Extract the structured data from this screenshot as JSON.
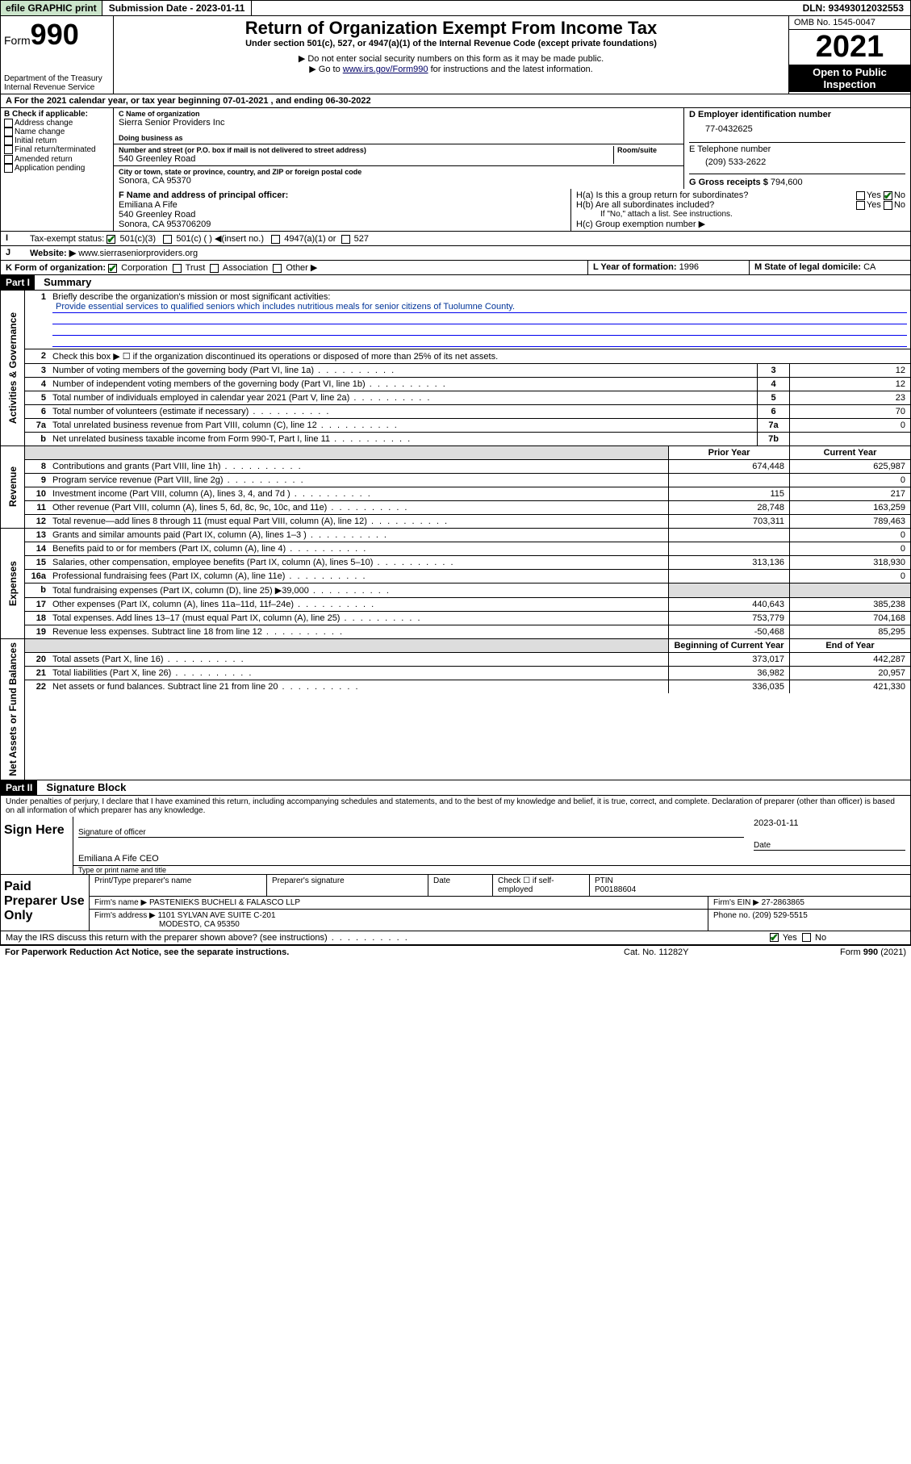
{
  "topbar": {
    "efile": "efile GRAPHIC print",
    "submission_label": "Submission Date - 2023-01-11",
    "dln": "DLN: 93493012032553"
  },
  "header": {
    "form_label": "Form",
    "form_number": "990",
    "dept": "Department of the Treasury",
    "irs": "Internal Revenue Service",
    "title": "Return of Organization Exempt From Income Tax",
    "subtitle": "Under section 501(c), 527, or 4947(a)(1) of the Internal Revenue Code (except private foundations)",
    "note1": "▶ Do not enter social security numbers on this form as it may be made public.",
    "note2_pre": "▶ Go to ",
    "note2_link": "www.irs.gov/Form990",
    "note2_post": " for instructions and the latest information.",
    "omb": "OMB No. 1545-0047",
    "year": "2021",
    "inspection": "Open to Public Inspection"
  },
  "period": {
    "text": "A For the 2021 calendar year, or tax year beginning 07-01-2021   , and ending 06-30-2022"
  },
  "sectionB": {
    "header": "B Check if applicable:",
    "items": [
      "Address change",
      "Name change",
      "Initial return",
      "Final return/terminated",
      "Amended return",
      "Application pending"
    ]
  },
  "sectionC": {
    "name_label": "C Name of organization",
    "name": "Sierra Senior Providers Inc",
    "dba_label": "Doing business as",
    "addr_label": "Number and street (or P.O. box if mail is not delivered to street address)",
    "room_label": "Room/suite",
    "addr": "540 Greenley Road",
    "city_label": "City or town, state or province, country, and ZIP or foreign postal code",
    "city": "Sonora, CA  95370"
  },
  "sectionD": {
    "label": "D Employer identification number",
    "ein": "77-0432625"
  },
  "sectionE": {
    "label": "E Telephone number",
    "phone": "(209) 533-2622"
  },
  "sectionG": {
    "label": "G Gross receipts $",
    "amount": "794,600"
  },
  "sectionF": {
    "label": "F Name and address of principal officer:",
    "name": "Emiliana A Fife",
    "addr1": "540 Greenley Road",
    "addr2": "Sonora, CA  953706209"
  },
  "sectionH": {
    "a": "H(a)  Is this a group return for subordinates?",
    "b": "H(b)  Are all subordinates included?",
    "b_note": "If \"No,\" attach a list. See instructions.",
    "c": "H(c)  Group exemption number ▶",
    "yes": "Yes",
    "no": "No"
  },
  "sectionI": {
    "label": "Tax-exempt status:",
    "opt1": "501(c)(3)",
    "opt2": "501(c) (  ) ◀(insert no.)",
    "opt3": "4947(a)(1) or",
    "opt4": "527"
  },
  "sectionJ": {
    "label": "Website: ▶",
    "url": "www.sierraseniorproviders.org"
  },
  "sectionK": {
    "label": "K Form of organization:",
    "opts": [
      "Corporation",
      "Trust",
      "Association",
      "Other ▶"
    ]
  },
  "sectionL": {
    "label": "L Year of formation:",
    "year": "1996"
  },
  "sectionM": {
    "label": "M State of legal domicile:",
    "state": "CA"
  },
  "part1": {
    "label": "Part I",
    "title": "Summary",
    "line1_label": "Briefly describe the organization's mission or most significant activities:",
    "mission": "Provide essential services to qualified seniors which includes nutritious meals for senior citizens of Tuolumne County.",
    "line2": "Check this box ▶ ☐  if the organization discontinued its operations or disposed of more than 25% of its net assets.",
    "groups": {
      "governance": "Activities & Governance",
      "revenue": "Revenue",
      "expenses": "Expenses",
      "netassets": "Net Assets or Fund Balances"
    },
    "prior_year": "Prior Year",
    "current_year": "Current Year",
    "begin_year": "Beginning of Current Year",
    "end_year": "End of Year",
    "rows_gov": [
      {
        "n": "3",
        "d": "Number of voting members of the governing body (Part VI, line 1a)",
        "b": "3",
        "v": "12"
      },
      {
        "n": "4",
        "d": "Number of independent voting members of the governing body (Part VI, line 1b)",
        "b": "4",
        "v": "12"
      },
      {
        "n": "5",
        "d": "Total number of individuals employed in calendar year 2021 (Part V, line 2a)",
        "b": "5",
        "v": "23"
      },
      {
        "n": "6",
        "d": "Total number of volunteers (estimate if necessary)",
        "b": "6",
        "v": "70"
      },
      {
        "n": "7a",
        "d": "Total unrelated business revenue from Part VIII, column (C), line 12",
        "b": "7a",
        "v": "0"
      },
      {
        "n": "b",
        "d": "Net unrelated business taxable income from Form 990-T, Part I, line 11",
        "b": "7b",
        "v": ""
      }
    ],
    "rows_rev": [
      {
        "n": "8",
        "d": "Contributions and grants (Part VIII, line 1h)",
        "p": "674,448",
        "c": "625,987"
      },
      {
        "n": "9",
        "d": "Program service revenue (Part VIII, line 2g)",
        "p": "",
        "c": "0"
      },
      {
        "n": "10",
        "d": "Investment income (Part VIII, column (A), lines 3, 4, and 7d )",
        "p": "115",
        "c": "217"
      },
      {
        "n": "11",
        "d": "Other revenue (Part VIII, column (A), lines 5, 6d, 8c, 9c, 10c, and 11e)",
        "p": "28,748",
        "c": "163,259"
      },
      {
        "n": "12",
        "d": "Total revenue—add lines 8 through 11 (must equal Part VIII, column (A), line 12)",
        "p": "703,311",
        "c": "789,463"
      }
    ],
    "rows_exp": [
      {
        "n": "13",
        "d": "Grants and similar amounts paid (Part IX, column (A), lines 1–3 )",
        "p": "",
        "c": "0"
      },
      {
        "n": "14",
        "d": "Benefits paid to or for members (Part IX, column (A), line 4)",
        "p": "",
        "c": "0"
      },
      {
        "n": "15",
        "d": "Salaries, other compensation, employee benefits (Part IX, column (A), lines 5–10)",
        "p": "313,136",
        "c": "318,930"
      },
      {
        "n": "16a",
        "d": "Professional fundraising fees (Part IX, column (A), line 11e)",
        "p": "",
        "c": "0"
      },
      {
        "n": "b",
        "d": "Total fundraising expenses (Part IX, column (D), line 25) ▶39,000",
        "p": "",
        "c": "",
        "shaded": true
      },
      {
        "n": "17",
        "d": "Other expenses (Part IX, column (A), lines 11a–11d, 11f–24e)",
        "p": "440,643",
        "c": "385,238"
      },
      {
        "n": "18",
        "d": "Total expenses. Add lines 13–17 (must equal Part IX, column (A), line 25)",
        "p": "753,779",
        "c": "704,168"
      },
      {
        "n": "19",
        "d": "Revenue less expenses. Subtract line 18 from line 12",
        "p": "-50,468",
        "c": "85,295"
      }
    ],
    "rows_net": [
      {
        "n": "20",
        "d": "Total assets (Part X, line 16)",
        "p": "373,017",
        "c": "442,287"
      },
      {
        "n": "21",
        "d": "Total liabilities (Part X, line 26)",
        "p": "36,982",
        "c": "20,957"
      },
      {
        "n": "22",
        "d": "Net assets or fund balances. Subtract line 21 from line 20",
        "p": "336,035",
        "c": "421,330"
      }
    ]
  },
  "part2": {
    "label": "Part II",
    "title": "Signature Block",
    "penalties": "Under penalties of perjury, I declare that I have examined this return, including accompanying schedules and statements, and to the best of my knowledge and belief, it is true, correct, and complete. Declaration of preparer (other than officer) is based on all information of which preparer has any knowledge.",
    "sign_here": "Sign Here",
    "sig_officer": "Signature of officer",
    "date_label": "Date",
    "sig_date": "2023-01-11",
    "officer_name": "Emiliana A Fife CEO",
    "type_name": "Type or print name and title",
    "paid_prep": "Paid Preparer Use Only",
    "prep_name_label": "Print/Type preparer's name",
    "prep_sig_label": "Preparer's signature",
    "check_if": "Check ☐ if self-employed",
    "ptin_label": "PTIN",
    "ptin": "P00188604",
    "firm_name_label": "Firm's name   ▶",
    "firm_name": "PASTENIEKS BUCHELI & FALASCO LLP",
    "firm_ein_label": "Firm's EIN ▶",
    "firm_ein": "27-2863865",
    "firm_addr_label": "Firm's address ▶",
    "firm_addr1": "1101 SYLVAN AVE SUITE C-201",
    "firm_addr2": "MODESTO, CA  95350",
    "firm_phone_label": "Phone no.",
    "firm_phone": "(209) 529-5515",
    "may_irs": "May the IRS discuss this return with the preparer shown above? (see instructions)"
  },
  "footer": {
    "paperwork": "For Paperwork Reduction Act Notice, see the separate instructions.",
    "catno": "Cat. No. 11282Y",
    "formref": "Form 990 (2021)"
  }
}
